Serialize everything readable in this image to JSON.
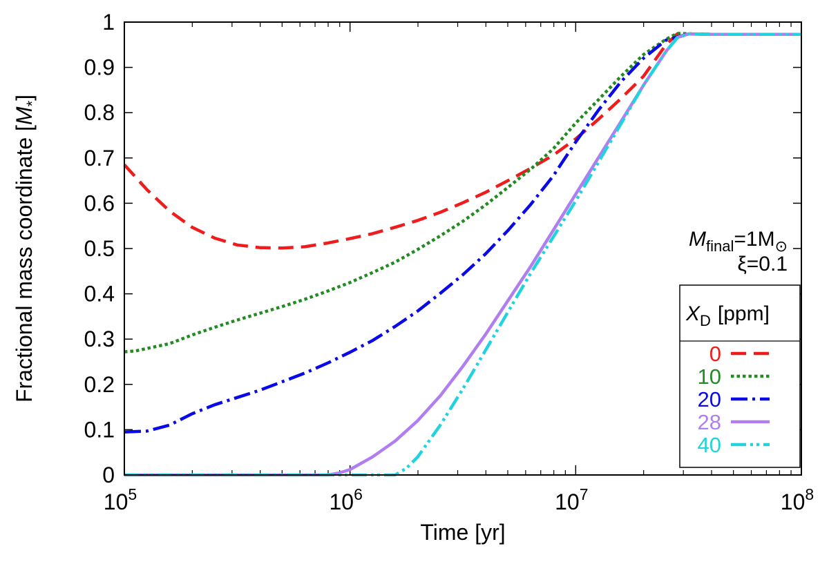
{
  "chart_data": {
    "type": "line",
    "xscale": "log",
    "xlim": [
      100000,
      100000000
    ],
    "ylim": [
      0,
      1
    ],
    "xlabel": "Time [yr]",
    "ylabel": "Fractional mass coordinate [M*]",
    "ylabel_parts": {
      "main": "Fractional mass coordinate [",
      "italic": "M",
      "sub": "*",
      "end": "]"
    },
    "x_ticks": [
      {
        "value": 100000,
        "base": "10",
        "exp": "5"
      },
      {
        "value": 1000000,
        "base": "10",
        "exp": "6"
      },
      {
        "value": 10000000,
        "base": "10",
        "exp": "7"
      },
      {
        "value": 100000000,
        "base": "10",
        "exp": "8"
      }
    ],
    "y_ticks": [
      {
        "value": 0,
        "label": "0"
      },
      {
        "value": 0.1,
        "label": "0.1"
      },
      {
        "value": 0.2,
        "label": "0.2"
      },
      {
        "value": 0.3,
        "label": "0.3"
      },
      {
        "value": 0.4,
        "label": "0.4"
      },
      {
        "value": 0.5,
        "label": "0.5"
      },
      {
        "value": 0.6,
        "label": "0.6"
      },
      {
        "value": 0.7,
        "label": "0.7"
      },
      {
        "value": 0.8,
        "label": "0.8"
      },
      {
        "value": 0.9,
        "label": "0.9"
      },
      {
        "value": 1,
        "label": "1"
      }
    ],
    "annotations": {
      "mfinal": {
        "italic": "M",
        "sub": "final",
        "text": "=1M",
        "sun": "⊙"
      },
      "xi": "ξ=0.1"
    },
    "legend": {
      "title": {
        "italic": "X",
        "sub": "D",
        "text": "[ppm]"
      },
      "position": "bottom-right"
    },
    "series": [
      {
        "name": "0",
        "color": "#ee1c1c",
        "dash": "22,11",
        "points": [
          [
            5.0,
            0.685
          ],
          [
            5.1,
            0.63
          ],
          [
            5.2,
            0.583
          ],
          [
            5.3,
            0.547
          ],
          [
            5.4,
            0.523
          ],
          [
            5.5,
            0.508
          ],
          [
            5.6,
            0.502
          ],
          [
            5.7,
            0.501
          ],
          [
            5.8,
            0.504
          ],
          [
            5.9,
            0.512
          ],
          [
            6.0,
            0.522
          ],
          [
            6.1,
            0.533
          ],
          [
            6.2,
            0.547
          ],
          [
            6.3,
            0.562
          ],
          [
            6.4,
            0.58
          ],
          [
            6.5,
            0.601
          ],
          [
            6.6,
            0.624
          ],
          [
            6.7,
            0.65
          ],
          [
            6.8,
            0.677
          ],
          [
            6.9,
            0.706
          ],
          [
            7.0,
            0.742
          ],
          [
            7.1,
            0.785
          ],
          [
            7.2,
            0.831
          ],
          [
            7.3,
            0.88
          ],
          [
            7.4,
            0.95
          ],
          [
            7.45,
            0.974
          ],
          [
            7.6,
            0.973
          ],
          [
            8.0,
            0.973
          ]
        ]
      },
      {
        "name": "10",
        "color": "#238b22",
        "dash": "4.5,4",
        "points": [
          [
            5.0,
            0.272
          ],
          [
            5.05,
            0.274
          ],
          [
            5.2,
            0.29
          ],
          [
            5.3,
            0.309
          ],
          [
            5.4,
            0.326
          ],
          [
            5.5,
            0.342
          ],
          [
            5.6,
            0.357
          ],
          [
            5.7,
            0.372
          ],
          [
            5.8,
            0.388
          ],
          [
            5.9,
            0.406
          ],
          [
            6.0,
            0.425
          ],
          [
            6.1,
            0.447
          ],
          [
            6.2,
            0.47
          ],
          [
            6.3,
            0.498
          ],
          [
            6.4,
            0.528
          ],
          [
            6.5,
            0.56
          ],
          [
            6.6,
            0.596
          ],
          [
            6.7,
            0.635
          ],
          [
            6.8,
            0.675
          ],
          [
            6.9,
            0.72
          ],
          [
            7.0,
            0.777
          ],
          [
            7.1,
            0.828
          ],
          [
            7.2,
            0.88
          ],
          [
            7.3,
            0.928
          ],
          [
            7.4,
            0.962
          ],
          [
            7.45,
            0.975
          ],
          [
            7.6,
            0.973
          ],
          [
            8.0,
            0.973
          ]
        ]
      },
      {
        "name": "20",
        "color": "#0a0ae6",
        "dash": "24,7,4,7",
        "points": [
          [
            5.0,
            0.095
          ],
          [
            5.1,
            0.097
          ],
          [
            5.2,
            0.11
          ],
          [
            5.3,
            0.135
          ],
          [
            5.4,
            0.155
          ],
          [
            5.5,
            0.171
          ],
          [
            5.6,
            0.187
          ],
          [
            5.7,
            0.206
          ],
          [
            5.8,
            0.225
          ],
          [
            5.9,
            0.247
          ],
          [
            6.0,
            0.271
          ],
          [
            6.1,
            0.297
          ],
          [
            6.2,
            0.328
          ],
          [
            6.3,
            0.362
          ],
          [
            6.4,
            0.401
          ],
          [
            6.5,
            0.442
          ],
          [
            6.6,
            0.488
          ],
          [
            6.7,
            0.54
          ],
          [
            6.8,
            0.597
          ],
          [
            6.9,
            0.66
          ],
          [
            7.0,
            0.735
          ],
          [
            7.1,
            0.805
          ],
          [
            7.2,
            0.868
          ],
          [
            7.3,
            0.92
          ],
          [
            7.4,
            0.96
          ],
          [
            7.5,
            0.974
          ],
          [
            7.6,
            0.973
          ],
          [
            8.0,
            0.973
          ]
        ]
      },
      {
        "name": "28",
        "color": "#b07ef0",
        "dash": "",
        "points": [
          [
            5.0,
            0.0
          ],
          [
            5.9,
            0.0
          ],
          [
            5.95,
            0.004
          ],
          [
            6.0,
            0.012
          ],
          [
            6.1,
            0.04
          ],
          [
            6.2,
            0.075
          ],
          [
            6.3,
            0.12
          ],
          [
            6.4,
            0.175
          ],
          [
            6.5,
            0.24
          ],
          [
            6.6,
            0.31
          ],
          [
            6.7,
            0.385
          ],
          [
            6.8,
            0.46
          ],
          [
            6.9,
            0.54
          ],
          [
            7.0,
            0.62
          ],
          [
            7.1,
            0.7
          ],
          [
            7.2,
            0.78
          ],
          [
            7.3,
            0.86
          ],
          [
            7.4,
            0.935
          ],
          [
            7.45,
            0.966
          ],
          [
            7.5,
            0.974
          ],
          [
            7.6,
            0.973
          ],
          [
            8.0,
            0.973
          ]
        ]
      },
      {
        "name": "40",
        "color": "#22d3dd",
        "dash": "22,6,4,5,4,6",
        "points": [
          [
            5.0,
            0.0
          ],
          [
            6.2,
            0.0
          ],
          [
            6.25,
            0.015
          ],
          [
            6.3,
            0.04
          ],
          [
            6.4,
            0.11
          ],
          [
            6.5,
            0.19
          ],
          [
            6.6,
            0.275
          ],
          [
            6.7,
            0.36
          ],
          [
            6.8,
            0.445
          ],
          [
            6.9,
            0.525
          ],
          [
            7.0,
            0.605
          ],
          [
            7.1,
            0.69
          ],
          [
            7.2,
            0.775
          ],
          [
            7.3,
            0.86
          ],
          [
            7.4,
            0.935
          ],
          [
            7.45,
            0.965
          ],
          [
            7.5,
            0.974
          ],
          [
            7.6,
            0.973
          ],
          [
            8.0,
            0.973
          ]
        ]
      }
    ]
  }
}
